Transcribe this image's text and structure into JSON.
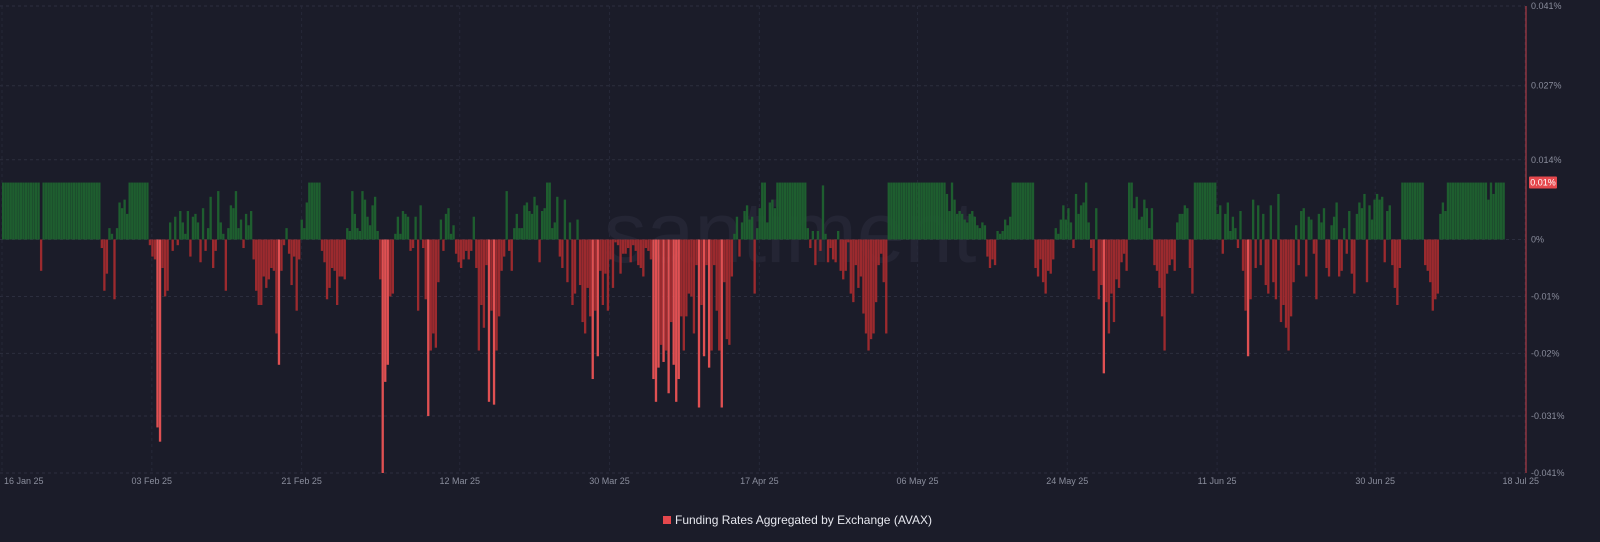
{
  "watermark": "santiment",
  "chart_data": {
    "type": "bar",
    "legend": "Funding Rates Aggregated by Exchange (AVAX)",
    "legend_placement": "bottom-center",
    "x_start": "2025-01-16",
    "x_end": "2025-07-18",
    "x_tick_labels": [
      "16 Jan 25",
      "03 Feb 25",
      "21 Feb 25",
      "12 Mar 25",
      "30 Mar 25",
      "17 Apr 25",
      "06 May 25",
      "24 May 25",
      "11 Jun 25",
      "30 Jun 25",
      "18 Jul 25"
    ],
    "y_tick_labels": [
      "0.041%",
      "0.027%",
      "0.014%",
      "0%",
      "-0.01%",
      "-0.02%",
      "-0.031%",
      "-0.041%"
    ],
    "y_ticks": [
      0.041,
      0.027,
      0.014,
      0,
      -0.01,
      -0.02,
      -0.031,
      -0.041
    ],
    "ylim": [
      -0.041,
      0.041
    ],
    "y_unit": "%",
    "current_value_label": "0.01%",
    "current_value": 0.01,
    "grid": true,
    "colors": {
      "positive": "#1e5e2f",
      "negative": "#9c2a2e",
      "negative_spike": "#e05052",
      "label_bg": "#e5484d",
      "legend_marker": "#e5484d"
    },
    "values": [
      0.01,
      0.01,
      0.01,
      0.01,
      0.01,
      0.01,
      0.01,
      0.01,
      0.01,
      0.01,
      0.01,
      0.01,
      0.01,
      0.01,
      0.01,
      -0.0055,
      0.01,
      0.01,
      0.01,
      0.01,
      0.01,
      0.01,
      0.01,
      0.01,
      0.01,
      0.01,
      0.01,
      0.01,
      0.01,
      0.01,
      0.01,
      0.01,
      0.01,
      0.01,
      0.01,
      0.01,
      0.01,
      0.01,
      0.01,
      -0.0015,
      -0.009,
      -0.006,
      0.002,
      0.001,
      -0.0105,
      0.002,
      0.0065,
      0.0055,
      0.007,
      0.0045,
      0.01,
      0.01,
      0.01,
      0.01,
      0.01,
      0.01,
      0.01,
      0.01,
      -0.001,
      -0.003,
      -0.0035,
      -0.033,
      -0.0355,
      -0.005,
      -0.01,
      -0.009,
      0.003,
      -0.002,
      0.004,
      -0.001,
      0.005,
      0.003,
      0.001,
      0.005,
      -0.003,
      0.004,
      0.0045,
      0.003,
      -0.004,
      0.0055,
      -0.002,
      0.002,
      0.0075,
      -0.005,
      -0.002,
      0.0085,
      0.003,
      0.001,
      -0.009,
      0.002,
      0.006,
      0.0055,
      0.0085,
      0.002,
      0.0035,
      -0.0015,
      0.0045,
      0.0025,
      0.005,
      -0.0035,
      -0.009,
      -0.0115,
      -0.0115,
      -0.0065,
      -0.0085,
      -0.007,
      -0.005,
      -0.0055,
      -0.0165,
      -0.022,
      -0.0055,
      -0.001,
      0.002,
      -0.0025,
      -0.008,
      -0.003,
      -0.0125,
      -0.0035,
      0.0035,
      0.002,
      0.0065,
      0.01,
      0.01,
      0.01,
      0.01,
      0.01,
      -0.002,
      -0.004,
      -0.0105,
      -0.0085,
      -0.005,
      -0.0055,
      -0.0115,
      -0.0065,
      -0.0065,
      -0.007,
      0.002,
      0.0015,
      0.0085,
      0.0045,
      0.002,
      0.0015,
      0.0085,
      0.007,
      0.004,
      0.0025,
      0.006,
      0.0075,
      0.0015,
      -0.007,
      -0.041,
      -0.025,
      -0.022,
      -0.01,
      -0.0095,
      0.001,
      0.004,
      0.001,
      0.005,
      0.0045,
      0.004,
      -0.002,
      -0.0015,
      0.004,
      -0.0125,
      0.006,
      -0.0015,
      -0.0105,
      -0.031,
      -0.0195,
      -0.0165,
      -0.019,
      -0.0075,
      0.0035,
      -0.002,
      0.0045,
      0.0055,
      0.001,
      0.0025,
      -0.0025,
      -0.004,
      -0.005,
      -0.0035,
      -0.002,
      -0.0035,
      -0.002,
      0.004,
      -0.005,
      -0.0195,
      -0.0115,
      -0.0155,
      -0.0045,
      -0.0285,
      -0.0125,
      -0.029,
      -0.0195,
      -0.0135,
      -0.0055,
      -0.003,
      0.0085,
      -0.002,
      -0.0055,
      0.002,
      0.0045,
      0.002,
      0.002,
      0.006,
      0.0065,
      0.005,
      0.0045,
      0.0075,
      0.006,
      -0.004,
      0.005,
      0.0055,
      0.01,
      0.01,
      0.002,
      0.003,
      0.0075,
      -0.003,
      -0.005,
      0.007,
      -0.0075,
      0.003,
      -0.0115,
      -0.0095,
      0.0035,
      -0.008,
      -0.0145,
      -0.0165,
      -0.0085,
      -0.0135,
      -0.0245,
      -0.0125,
      -0.0205,
      -0.0055,
      -0.0115,
      -0.006,
      -0.0125,
      -0.0035,
      -0.0085,
      -0.0005,
      -0.001,
      -0.006,
      -0.0025,
      -0.0025,
      -0.0015,
      -0.004,
      -0.001,
      -0.002,
      -0.0045,
      -0.005,
      -0.0065,
      -0.0015,
      -0.002,
      -0.0035,
      -0.0245,
      -0.0285,
      -0.0225,
      -0.0185,
      -0.0215,
      -0.0195,
      -0.027,
      -0.0145,
      -0.022,
      -0.0285,
      -0.0245,
      -0.0135,
      -0.0195,
      -0.0135,
      -0.0095,
      -0.01,
      -0.0165,
      -0.0045,
      -0.0295,
      -0.0115,
      -0.0205,
      -0.0045,
      -0.0225,
      -0.0195,
      -0.0045,
      -0.0125,
      -0.0195,
      -0.0295,
      -0.0075,
      -0.0175,
      -0.0185,
      -0.0065,
      0.001,
      0.004,
      -0.003,
      0.003,
      0.005,
      0.006,
      0.0035,
      0.004,
      -0.0095,
      0.002,
      0.0055,
      0.01,
      0.01,
      0.003,
      0.0065,
      0.007,
      0.0055,
      0.01,
      0.01,
      0.01,
      0.01,
      0.01,
      0.01,
      0.01,
      0.01,
      0.01,
      0.01,
      0.01,
      0.01,
      0.002,
      -0.0015,
      0.0015,
      -0.0045,
      0.0015,
      -0.002,
      0.0095,
      0.001,
      -0.004,
      -0.0015,
      -0.0035,
      -0.004,
      0.0015,
      -0.0055,
      -0.007,
      -0.0055,
      -0.0005,
      -0.0095,
      -0.011,
      -0.0045,
      -0.0085,
      -0.0065,
      -0.013,
      -0.0165,
      -0.0195,
      -0.0175,
      -0.0165,
      -0.011,
      -0.0045,
      -0.0025,
      -0.0075,
      -0.0165,
      0.01,
      0.01,
      0.01,
      0.01,
      0.01,
      0.01,
      0.01,
      0.01,
      0.01,
      0.01,
      0.01,
      0.01,
      0.01,
      0.01,
      0.01,
      0.01,
      0.01,
      0.01,
      0.01,
      0.01,
      0.01,
      0.01,
      0.01,
      0.008,
      0.005,
      0.01,
      0.007,
      0.0045,
      0.005,
      0.0045,
      0.0035,
      0.003,
      0.0045,
      0.005,
      0.004,
      0.0025,
      0.002,
      0.003,
      0.0025,
      -0.003,
      -0.005,
      -0.0035,
      -0.0045,
      0.0015,
      0.001,
      0.0015,
      0.0035,
      0.0025,
      0.004,
      0.01,
      0.01,
      0.01,
      0.01,
      0.01,
      0.01,
      0.01,
      0.01,
      0.01,
      -0.005,
      -0.0065,
      -0.0035,
      -0.0075,
      -0.0095,
      -0.0055,
      -0.006,
      -0.0035,
      0.002,
      0.001,
      0.0035,
      0.006,
      0.0035,
      0.0055,
      0.003,
      -0.0015,
      0.008,
      0.0045,
      0.006,
      0.0065,
      0.01,
      0.003,
      -0.0015,
      -0.0055,
      0.0055,
      -0.0105,
      -0.008,
      -0.0235,
      -0.011,
      -0.0165,
      -0.0095,
      -0.0145,
      -0.007,
      -0.0085,
      -0.004,
      -0.0025,
      -0.0055,
      0.01,
      0.01,
      0.0055,
      0.0075,
      0.0035,
      0.004,
      0.007,
      0.0055,
      0.002,
      0.0055,
      -0.0045,
      -0.0055,
      -0.0085,
      -0.0135,
      -0.0195,
      -0.006,
      -0.0045,
      -0.0035,
      -0.0055,
      0.003,
      0.0045,
      0.0045,
      0.006,
      0.0055,
      -0.005,
      -0.0095,
      0.01,
      0.01,
      0.01,
      0.01,
      0.01,
      0.01,
      0.01,
      0.01,
      0.01,
      0.0045,
      0.006,
      -0.0025,
      0.0045,
      0.0065,
      0.0015,
      0.004,
      0.002,
      -0.0015,
      0.005,
      -0.0055,
      -0.0125,
      -0.0205,
      -0.0105,
      0.007,
      -0.005,
      0.006,
      -0.0045,
      0.0045,
      -0.008,
      -0.0095,
      0.006,
      -0.0075,
      -0.0105,
      0.008,
      -0.0145,
      -0.0115,
      -0.0155,
      -0.0195,
      -0.0135,
      -0.0075,
      0.0025,
      -0.0045,
      0.005,
      0.0055,
      -0.0065,
      0.004,
      0.0035,
      -0.0025,
      -0.0105,
      0.0045,
      0.003,
      0.0055,
      -0.005,
      -0.0065,
      0.0025,
      0.004,
      0.0065,
      -0.0065,
      -0.0055,
      0.002,
      -0.0025,
      0.005,
      -0.006,
      -0.0095,
      0.0045,
      0.0065,
      0.0055,
      0.008,
      -0.0075,
      0.006,
      0.0035,
      0.007,
      0.008,
      0.007,
      0.0075,
      -0.004,
      0.005,
      0.006,
      -0.0045,
      -0.0085,
      -0.0115,
      -0.005,
      0.01,
      0.01,
      0.01,
      0.01,
      0.01,
      0.01,
      0.01,
      0.01,
      0.01,
      -0.0045,
      -0.0055,
      -0.0075,
      -0.0125,
      -0.0105,
      -0.0095,
      0.0045,
      0.0065,
      0.005,
      0.01,
      0.01,
      0.01,
      0.01,
      0.01,
      0.01,
      0.01,
      0.01,
      0.01,
      0.01,
      0.01,
      0.01,
      0.01,
      0.01,
      0.01,
      0.01,
      0.007,
      0.01,
      0.008,
      0.01,
      0.01,
      0.01,
      0.01
    ]
  }
}
